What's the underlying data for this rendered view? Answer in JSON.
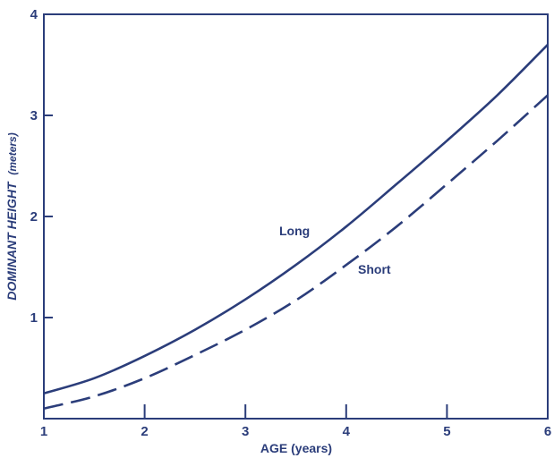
{
  "chart_data": {
    "type": "line",
    "title": "",
    "xlabel": "AGE (years)",
    "ylabel": "DOMINANT HEIGHT (meters)",
    "ylabel_main": "DOMINANT HEIGHT",
    "ylabel_unit": "(meters)",
    "xlim": [
      1,
      6
    ],
    "ylim": [
      0,
      4
    ],
    "x_ticks": [
      1,
      2,
      3,
      4,
      5,
      6
    ],
    "y_ticks": [
      1,
      2,
      3,
      4
    ],
    "grid": false,
    "legend": "none",
    "color": "#2b3d7a",
    "series": [
      {
        "name": "Long",
        "line_style": "solid",
        "x": [
          1,
          1.5,
          2,
          2.5,
          3,
          3.5,
          4,
          4.5,
          5,
          5.5,
          6
        ],
        "y": [
          0.25,
          0.4,
          0.62,
          0.88,
          1.18,
          1.52,
          1.9,
          2.32,
          2.75,
          3.2,
          3.7
        ]
      },
      {
        "name": "Short",
        "line_style": "dashed",
        "x": [
          1,
          1.5,
          2,
          2.5,
          3,
          3.5,
          4,
          4.5,
          5,
          5.5,
          6
        ],
        "y": [
          0.1,
          0.22,
          0.4,
          0.63,
          0.88,
          1.17,
          1.52,
          1.9,
          2.32,
          2.75,
          3.2
        ]
      }
    ]
  }
}
